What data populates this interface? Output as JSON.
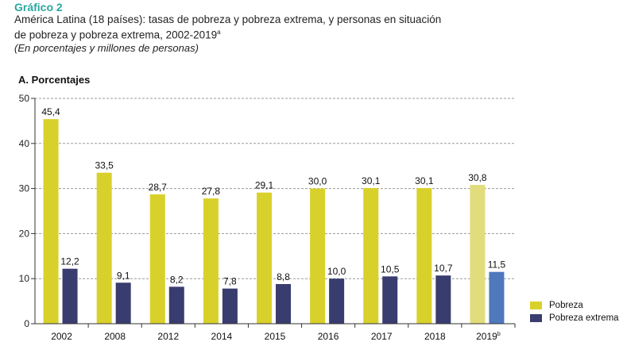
{
  "header": {
    "label": "Gráfico 2",
    "title_line1": "América Latina (18 países): tasas de pobreza y pobreza extrema, y personas en situación",
    "title_line2": "de pobreza y pobreza extrema, 2002-2019",
    "title_sup": "a",
    "subtitle": "(En porcentajes y millones de personas)"
  },
  "panel_title": "A. Porcentajes",
  "colors": {
    "pobreza": "#d9d12b",
    "pobreza_projected": "#e1dd7c",
    "extrema": "#393c6e",
    "extrema_projected": "#4f78bd",
    "grid": "#9a9a9a",
    "axis": "#333333"
  },
  "chart_data": {
    "type": "bar",
    "categories": [
      "2002",
      "2008",
      "2012",
      "2014",
      "2015",
      "2016",
      "2017",
      "2018",
      "2019"
    ],
    "category_sup": [
      "",
      "",
      "",
      "",
      "",
      "",
      "",
      "",
      "b"
    ],
    "series": [
      {
        "name": "Pobreza",
        "values": [
          45.4,
          33.5,
          28.7,
          27.8,
          29.1,
          30.0,
          30.1,
          30.1,
          30.8
        ],
        "labels": [
          "45,4",
          "33,5",
          "28,7",
          "27,8",
          "29,1",
          "30,0",
          "30,1",
          "30,1",
          "30,8"
        ]
      },
      {
        "name": "Pobreza extrema",
        "values": [
          12.2,
          9.1,
          8.2,
          7.8,
          8.8,
          10.0,
          10.5,
          10.7,
          11.5
        ],
        "labels": [
          "12,2",
          "9,1",
          "8,2",
          "7,8",
          "8,8",
          "10,0",
          "10,5",
          "10,7",
          "11,5"
        ]
      }
    ],
    "yticks": [
      0,
      10,
      20,
      30,
      40,
      50
    ],
    "ylim": [
      0,
      50
    ],
    "grid": true,
    "legend": "bottom-right"
  }
}
